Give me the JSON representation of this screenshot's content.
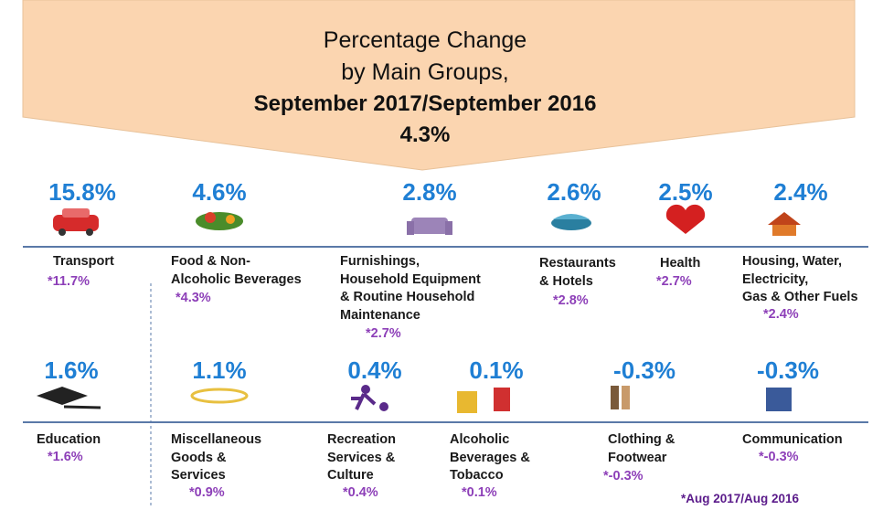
{
  "header": {
    "line1": "Percentage Change",
    "line2": "by  Main Groups,",
    "line3": "September 2017/September 2016",
    "total": "4.3%"
  },
  "groups": [
    {
      "value": "15.8%",
      "name": [
        "Transport"
      ],
      "previous": "*11.7%"
    },
    {
      "value": "4.6%",
      "name": [
        "Food &  Non-",
        "Alcoholic Beverages"
      ],
      "previous": "*4.3%"
    },
    {
      "value": "2.8%",
      "name": [
        "Furnishings,",
        "Household Equipment",
        "& Routine Household",
        "Maintenance"
      ],
      "previous": "*2.7%"
    },
    {
      "value": "2.6%",
      "name": [
        "Restaurants",
        "& Hotels"
      ],
      "previous": "*2.8%"
    },
    {
      "value": "2.5%",
      "name": [
        "Health"
      ],
      "previous": "*2.7%"
    },
    {
      "value": "2.4%",
      "name": [
        "Housing, Water,",
        "Electricity,",
        "Gas & Other Fuels"
      ],
      "previous": "*2.4%"
    },
    {
      "value": "1.6%",
      "name": [
        "Education"
      ],
      "previous": "*1.6%"
    },
    {
      "value": "1.1%",
      "name": [
        "Miscellaneous",
        "Goods &",
        "Services"
      ],
      "previous": "*0.9%"
    },
    {
      "value": "0.4%",
      "name": [
        "Recreation",
        "Services &",
        "Culture"
      ],
      "previous": "*0.4%"
    },
    {
      "value": "0.1%",
      "name": [
        "Alcoholic",
        "Beverages &",
        "Tobacco"
      ],
      "previous": "*0.1%"
    },
    {
      "value": "-0.3%",
      "name": [
        "Clothing  &",
        "Footwear"
      ],
      "previous": "*-0.3%"
    },
    {
      "value": "-0.3%",
      "name": [
        "Communication"
      ],
      "previous": "*-0.3%"
    }
  ],
  "footnote": "*Aug 2017/Aug 2016"
}
